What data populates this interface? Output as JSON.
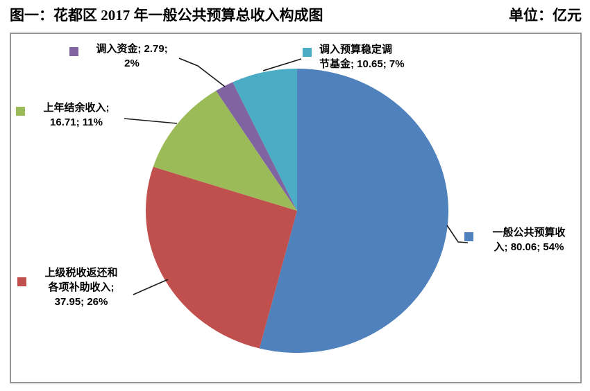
{
  "header": {
    "title": "图一：花都区 2017 年一般公共预算总收入构成图",
    "unit_label": "单位：亿元"
  },
  "chart_data": {
    "type": "pie",
    "title": "花都区 2017 年一般公共预算总收入构成图",
    "unit": "亿元",
    "start_angle": "12-o-clock",
    "direction": "clockwise",
    "series": [
      {
        "name": "一般公共预算收入",
        "value": 80.06,
        "percent": 54,
        "color": "#4F81BD"
      },
      {
        "name": "上级税收返还和各项补助收入",
        "value": 37.95,
        "percent": 26,
        "color": "#C0504D"
      },
      {
        "name": "上年结余收入",
        "value": 16.71,
        "percent": 11,
        "color": "#9BBB59"
      },
      {
        "name": "调入资金",
        "value": 2.79,
        "percent": 2,
        "color": "#8064A2"
      },
      {
        "name": "调入预算稳定调节基金",
        "value": 10.65,
        "percent": 7,
        "color": "#4BACC6"
      }
    ],
    "labels": [
      {
        "series": "一般公共预算收入",
        "lines": [
          "一般公共预算收",
          "入; 80.06; 54%"
        ]
      },
      {
        "series": "上级税收返还和各项补助收入",
        "lines": [
          "上级税收返还和",
          "各项补助收入;",
          "37.95; 26%"
        ]
      },
      {
        "series": "上年结余收入",
        "lines": [
          "上年结余收入;",
          "16.71; 11%"
        ]
      },
      {
        "series": "调入资金",
        "lines": [
          "调入资金; 2.79;",
          "2%"
        ]
      },
      {
        "series": "调入预算稳定调节基金",
        "lines": [
          "调入预算稳定调",
          "节基金; 10.65; 7%"
        ]
      }
    ]
  }
}
